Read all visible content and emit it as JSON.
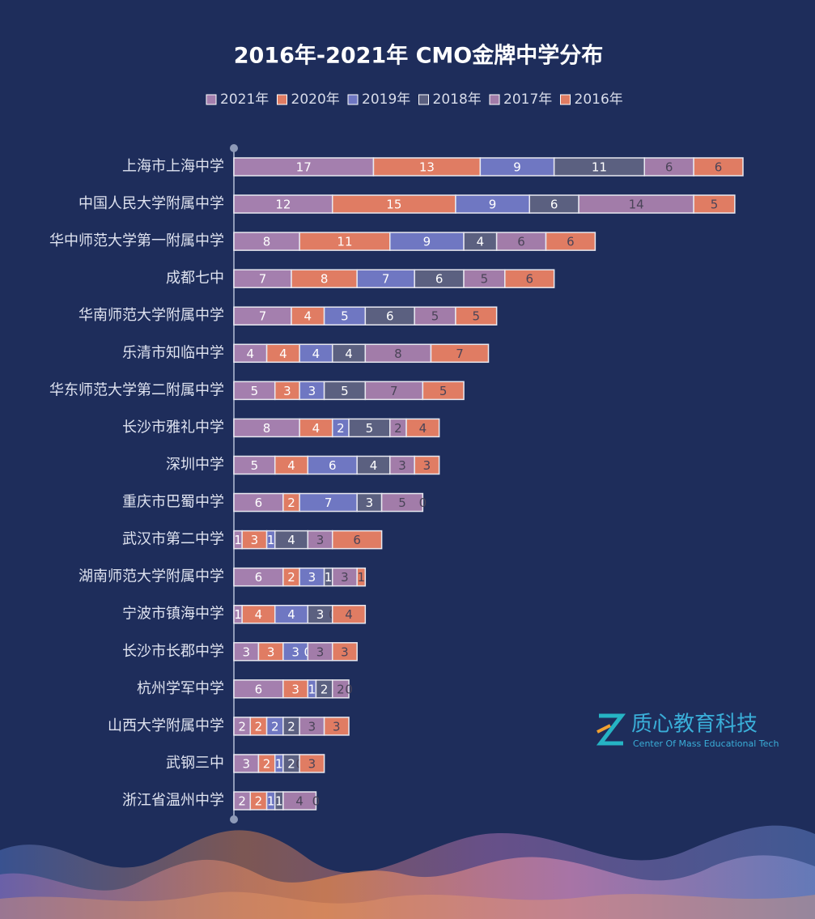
{
  "chart_data": {
    "type": "stacked_bar_horizontal",
    "title": "2016年-2021年 CMO金牌中学分布",
    "categories": [
      "上海市上海中学",
      "中国人民大学附属中学",
      "华中师范大学第一附属中学",
      "成都七中",
      "华南师范大学附属中学",
      "乐清市知临中学",
      "华东师范大学第二附属中学",
      "长沙市雅礼中学",
      "深圳中学",
      "重庆市巴蜀中学",
      "武汉市第二中学",
      "湖南师范大学附属中学",
      "宁波市镇海中学",
      "长沙市长郡中学",
      "杭州学军中学",
      "山西大学附属中学",
      "武钢三中",
      "浙江省温州中学"
    ],
    "series": [
      {
        "name": "2021年",
        "color": "#a47fae",
        "label_color": "#ffffff",
        "values": [
          17,
          12,
          8,
          7,
          7,
          4,
          5,
          8,
          5,
          6,
          1,
          6,
          1,
          3,
          6,
          2,
          3,
          2
        ]
      },
      {
        "name": "2020年",
        "color": "#e07c63",
        "label_color": "#ffffff",
        "values": [
          13,
          15,
          11,
          8,
          4,
          4,
          3,
          4,
          4,
          2,
          3,
          2,
          4,
          3,
          3,
          2,
          2,
          2
        ]
      },
      {
        "name": "2019年",
        "color": "#6f77c2",
        "label_color": "#ffffff",
        "values": [
          9,
          9,
          9,
          7,
          5,
          4,
          3,
          2,
          6,
          7,
          1,
          3,
          4,
          3,
          1,
          2,
          1,
          1
        ]
      },
      {
        "name": "2018年",
        "color": "#5b6080",
        "label_color": "#ffffff",
        "values": [
          11,
          6,
          4,
          6,
          6,
          4,
          5,
          5,
          4,
          3,
          4,
          1,
          3,
          0,
          2,
          2,
          2,
          1
        ]
      },
      {
        "name": "2017年",
        "color": "#a27ca9",
        "label_color": "#4a4458",
        "values": [
          6,
          14,
          6,
          5,
          5,
          8,
          7,
          2,
          3,
          5,
          3,
          3,
          0,
          3,
          2,
          3,
          0,
          4
        ]
      },
      {
        "name": "2016年",
        "color": "#e07c63",
        "label_color": "#4a4458",
        "values": [
          6,
          5,
          6,
          6,
          5,
          7,
          5,
          4,
          3,
          0,
          6,
          1,
          4,
          3,
          0,
          3,
          3,
          0
        ]
      }
    ]
  },
  "watermark": {
    "name": "质心教育科技",
    "subtitle": "Center Of Mass Educational Tech"
  }
}
